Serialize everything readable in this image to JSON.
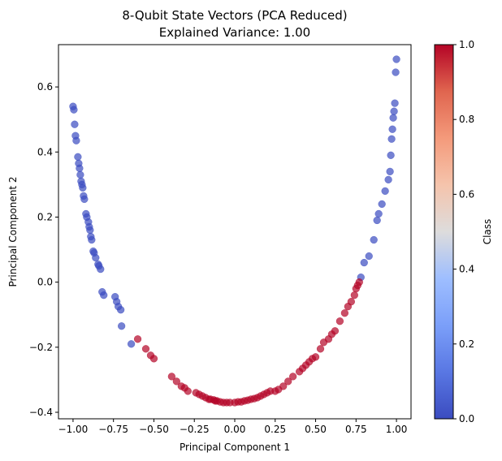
{
  "chart_data": {
    "type": "scatter",
    "title": "8-Qubit State Vectors (PCA Reduced)",
    "subtitle": "Explained Variance: 1.00",
    "xlabel": "Principal Component 1",
    "ylabel": "Principal Component 2",
    "xlim": [
      -1.09,
      1.09
    ],
    "ylim": [
      -0.42,
      0.73
    ],
    "xticks": [
      -1.0,
      -0.75,
      -0.5,
      -0.25,
      0.0,
      0.25,
      0.5,
      0.75,
      1.0
    ],
    "xtick_labels": [
      "−1.00",
      "−0.75",
      "−0.50",
      "−0.25",
      "0.00",
      "0.25",
      "0.50",
      "0.75",
      "1.00"
    ],
    "yticks": [
      -0.4,
      -0.2,
      0.0,
      0.2,
      0.4,
      0.6
    ],
    "ytick_labels": [
      "−0.4",
      "−0.2",
      "0.0",
      "0.2",
      "0.4",
      "0.6"
    ],
    "grid": false,
    "colorbar": {
      "label": "Class",
      "colormap": "coolwarm",
      "range": [
        0,
        1
      ],
      "ticks": [
        0.0,
        0.2,
        0.4,
        0.6,
        0.8,
        1.0
      ],
      "tick_labels": [
        "0.0",
        "0.2",
        "0.4",
        "0.6",
        "0.8",
        "1.0"
      ],
      "color_low": "#3b4cc0",
      "color_mid": "#dddddd",
      "color_high": "#b40426"
    },
    "point_alpha": 0.7,
    "series": [
      {
        "class": 0,
        "color": "#3b4cc0",
        "x": [
          -1.0,
          -0.995,
          -0.99,
          -0.985,
          -0.98,
          -0.97,
          -0.965,
          -0.96,
          -0.955,
          -0.95,
          -0.945,
          -0.94,
          -0.935,
          -0.93,
          -0.92,
          -0.915,
          -0.905,
          -0.9,
          -0.895,
          -0.89,
          -0.885,
          -0.875,
          -0.87,
          -0.86,
          -0.845,
          -0.84,
          -0.83,
          -0.82,
          -0.81,
          -0.74,
          -0.73,
          -0.72,
          -0.705,
          -0.7,
          -0.64,
          0.78,
          0.8,
          0.83,
          0.86,
          0.88,
          0.89,
          0.91,
          0.93,
          0.95,
          0.96,
          0.965,
          0.97,
          0.975,
          0.98,
          0.985,
          0.99,
          0.995,
          1.0
        ],
        "y": [
          0.54,
          0.53,
          0.485,
          0.45,
          0.435,
          0.385,
          0.365,
          0.35,
          0.33,
          0.31,
          0.3,
          0.29,
          0.265,
          0.255,
          0.21,
          0.2,
          0.185,
          0.17,
          0.16,
          0.14,
          0.13,
          0.095,
          0.09,
          0.075,
          0.055,
          0.05,
          0.04,
          -0.03,
          -0.04,
          -0.045,
          -0.06,
          -0.075,
          -0.085,
          -0.135,
          -0.19,
          0.015,
          0.06,
          0.08,
          0.13,
          0.19,
          0.21,
          0.24,
          0.28,
          0.315,
          0.34,
          0.39,
          0.44,
          0.47,
          0.505,
          0.525,
          0.55,
          0.645,
          0.685
        ]
      },
      {
        "class": 1,
        "color": "#b40426",
        "x": [
          -0.6,
          -0.55,
          -0.52,
          -0.5,
          -0.39,
          -0.36,
          -0.33,
          -0.31,
          -0.29,
          -0.24,
          -0.22,
          -0.2,
          -0.18,
          -0.16,
          -0.15,
          -0.13,
          -0.12,
          -0.11,
          -0.09,
          -0.07,
          -0.05,
          -0.03,
          0.0,
          0.02,
          0.04,
          0.06,
          0.08,
          0.1,
          0.12,
          0.14,
          0.16,
          0.18,
          0.2,
          0.22,
          0.25,
          0.27,
          0.3,
          0.33,
          0.36,
          0.4,
          0.42,
          0.44,
          0.46,
          0.48,
          0.5,
          0.53,
          0.55,
          0.58,
          0.6,
          0.62,
          0.65,
          0.68,
          0.7,
          0.72,
          0.74,
          0.75,
          0.76,
          0.77
        ],
        "y": [
          -0.175,
          -0.205,
          -0.225,
          -0.235,
          -0.29,
          -0.305,
          -0.32,
          -0.325,
          -0.335,
          -0.34,
          -0.345,
          -0.35,
          -0.355,
          -0.36,
          -0.36,
          -0.362,
          -0.365,
          -0.365,
          -0.368,
          -0.37,
          -0.37,
          -0.37,
          -0.37,
          -0.368,
          -0.368,
          -0.365,
          -0.363,
          -0.36,
          -0.358,
          -0.355,
          -0.35,
          -0.345,
          -0.34,
          -0.335,
          -0.335,
          -0.33,
          -0.32,
          -0.305,
          -0.29,
          -0.275,
          -0.265,
          -0.255,
          -0.245,
          -0.235,
          -0.23,
          -0.205,
          -0.185,
          -0.175,
          -0.16,
          -0.15,
          -0.12,
          -0.095,
          -0.075,
          -0.06,
          -0.04,
          -0.02,
          -0.01,
          0.0
        ]
      }
    ]
  }
}
